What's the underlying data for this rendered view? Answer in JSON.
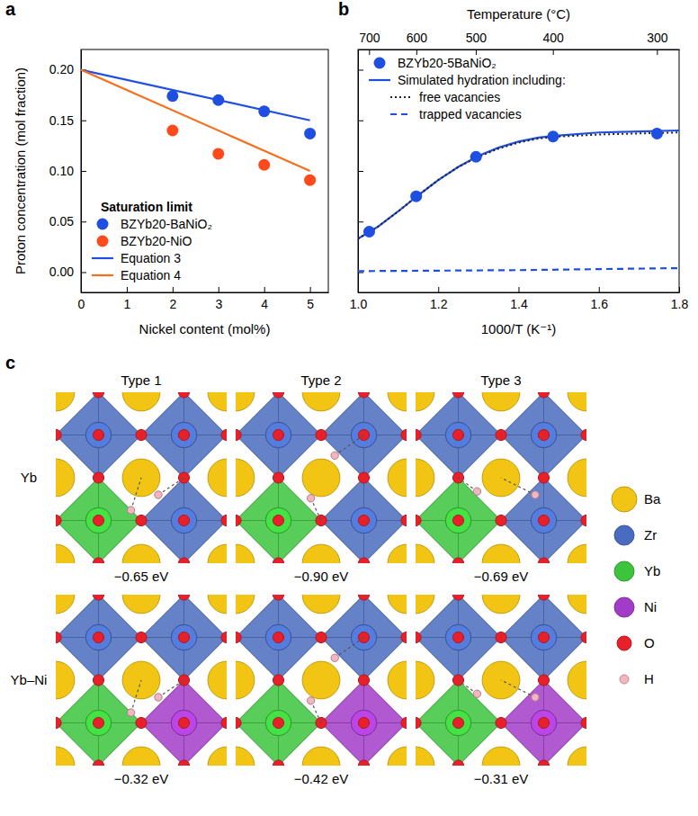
{
  "chart_data": [
    {
      "type": "scatter",
      "panel": "a",
      "xlabel": "Nickel content (mol%)",
      "ylabel": "Proton concentration (mol fraction)",
      "xlim": [
        0,
        5.4
      ],
      "xticks": [
        0,
        1,
        2,
        3,
        4,
        5
      ],
      "ylim": [
        -0.02,
        0.22
      ],
      "yticks": [
        {
          "value": 0,
          "label": "0.00"
        },
        {
          "value": 0.05,
          "label": "0.05"
        },
        {
          "value": 0.1,
          "label": "0.10"
        },
        {
          "value": 0.15,
          "label": "0.15"
        },
        {
          "value": 0.2,
          "label": "0.20"
        }
      ],
      "legend": "lower left",
      "legend_title": "Saturation limit",
      "series": [
        {
          "name": "BZYb20-BaNiO₂",
          "type": "scatter",
          "marker": "circle",
          "color": "#1f4fe0",
          "x": [
            2,
            3,
            4,
            5
          ],
          "values": [
            0.174,
            0.17,
            0.159,
            0.137
          ]
        },
        {
          "name": "BZYb20-NiO",
          "type": "scatter",
          "marker": "circle",
          "color": "#ff4a1c",
          "x": [
            2,
            3,
            4,
            5
          ],
          "values": [
            0.14,
            0.117,
            0.106,
            0.091
          ]
        },
        {
          "name": "Equation 3",
          "type": "line",
          "line_style": "solid",
          "color": "#1f4fe0",
          "x": [
            0,
            5
          ],
          "values": [
            0.2,
            0.15
          ]
        },
        {
          "name": "Equation 4",
          "type": "line",
          "line_style": "solid",
          "color": "#f5701e",
          "x": [
            0,
            5
          ],
          "values": [
            0.2,
            0.1
          ]
        }
      ]
    },
    {
      "type": "scatter",
      "panel": "b",
      "xlabel": "1000/T (K⁻¹)",
      "x2label": "Temperature (°C)",
      "xlim": [
        1.0,
        1.8
      ],
      "xticks": [
        {
          "value": 1.0,
          "label": "1.0"
        },
        {
          "value": 1.2,
          "label": "1.2"
        },
        {
          "value": 1.4,
          "label": "1.4"
        },
        {
          "value": 1.6,
          "label": "1.6"
        },
        {
          "value": 1.8,
          "label": "1.8"
        }
      ],
      "x2ticks": [
        {
          "value": 1.0276,
          "label": "700"
        },
        {
          "value": 1.1453,
          "label": "600"
        },
        {
          "value": 1.2934,
          "label": "500"
        },
        {
          "value": 1.4856,
          "label": "400"
        },
        {
          "value": 1.7448,
          "label": "300"
        }
      ],
      "ylim": [
        -0.02,
        0.22
      ],
      "yticks": [
        0,
        0.05,
        0.1,
        0.15,
        0.2
      ],
      "tick_labels": "x",
      "legend": "upper left",
      "series": [
        {
          "name": "BZYb20-5BaNiO₂",
          "type": "scatter",
          "marker": "circle",
          "color": "#1f4fe0",
          "x": [
            1.028,
            1.145,
            1.294,
            1.486,
            1.745
          ],
          "values": [
            0.04,
            0.075,
            0.114,
            0.134,
            0.137
          ]
        },
        {
          "name": "Simulated hydration including:",
          "type": "line",
          "line_style": "solid",
          "color": "#1f4fe0",
          "x": [
            1.0,
            1.05,
            1.1,
            1.15,
            1.2,
            1.25,
            1.3,
            1.35,
            1.4,
            1.45,
            1.5,
            1.6,
            1.7,
            1.8
          ],
          "values": [
            0.033,
            0.045,
            0.06,
            0.076,
            0.091,
            0.104,
            0.115,
            0.123,
            0.129,
            0.133,
            0.135,
            0.138,
            0.139,
            0.14
          ]
        },
        {
          "name": "free vacancies",
          "type": "line",
          "line_style": "dotted",
          "color": "#222222",
          "x": [
            1.0,
            1.05,
            1.1,
            1.15,
            1.2,
            1.25,
            1.3,
            1.35,
            1.4,
            1.45,
            1.5,
            1.6,
            1.7,
            1.8
          ],
          "values": [
            0.033,
            0.045,
            0.06,
            0.076,
            0.091,
            0.104,
            0.114,
            0.122,
            0.128,
            0.132,
            0.134,
            0.136,
            0.137,
            0.138
          ]
        },
        {
          "name": "trapped vacancies",
          "type": "line",
          "line_style": "dashed",
          "color": "#1f4fe0",
          "x": [
            1.0,
            1.2,
            1.4,
            1.6,
            1.8
          ],
          "values": [
            0.001,
            0.0015,
            0.002,
            0.003,
            0.004
          ]
        }
      ]
    }
  ],
  "diagram": {
    "panel": "c",
    "columns": [
      "Type 1",
      "Type 2",
      "Type 3"
    ],
    "rows": [
      {
        "label": "Yb",
        "octahedra": [
          "Zr",
          "Zr",
          "Yb",
          "Zr"
        ],
        "energies": [
          "−0.65 eV",
          "−0.90 eV",
          "−0.69 eV"
        ]
      },
      {
        "label": "Yb–Ni",
        "octahedra": [
          "Zr",
          "Zr",
          "Yb",
          "Ni"
        ],
        "energies": [
          "−0.32 eV",
          "−0.42 eV",
          "−0.31 eV"
        ]
      }
    ],
    "elements": [
      {
        "name": "Ba",
        "color": "#f2c414"
      },
      {
        "name": "Zr",
        "color": "#4a6cc0"
      },
      {
        "name": "Yb",
        "color": "#3cc43c"
      },
      {
        "name": "Ni",
        "color": "#a23cc8"
      },
      {
        "name": "O",
        "color": "#e8202a"
      },
      {
        "name": "H",
        "color": "#f4b4c0"
      }
    ]
  }
}
